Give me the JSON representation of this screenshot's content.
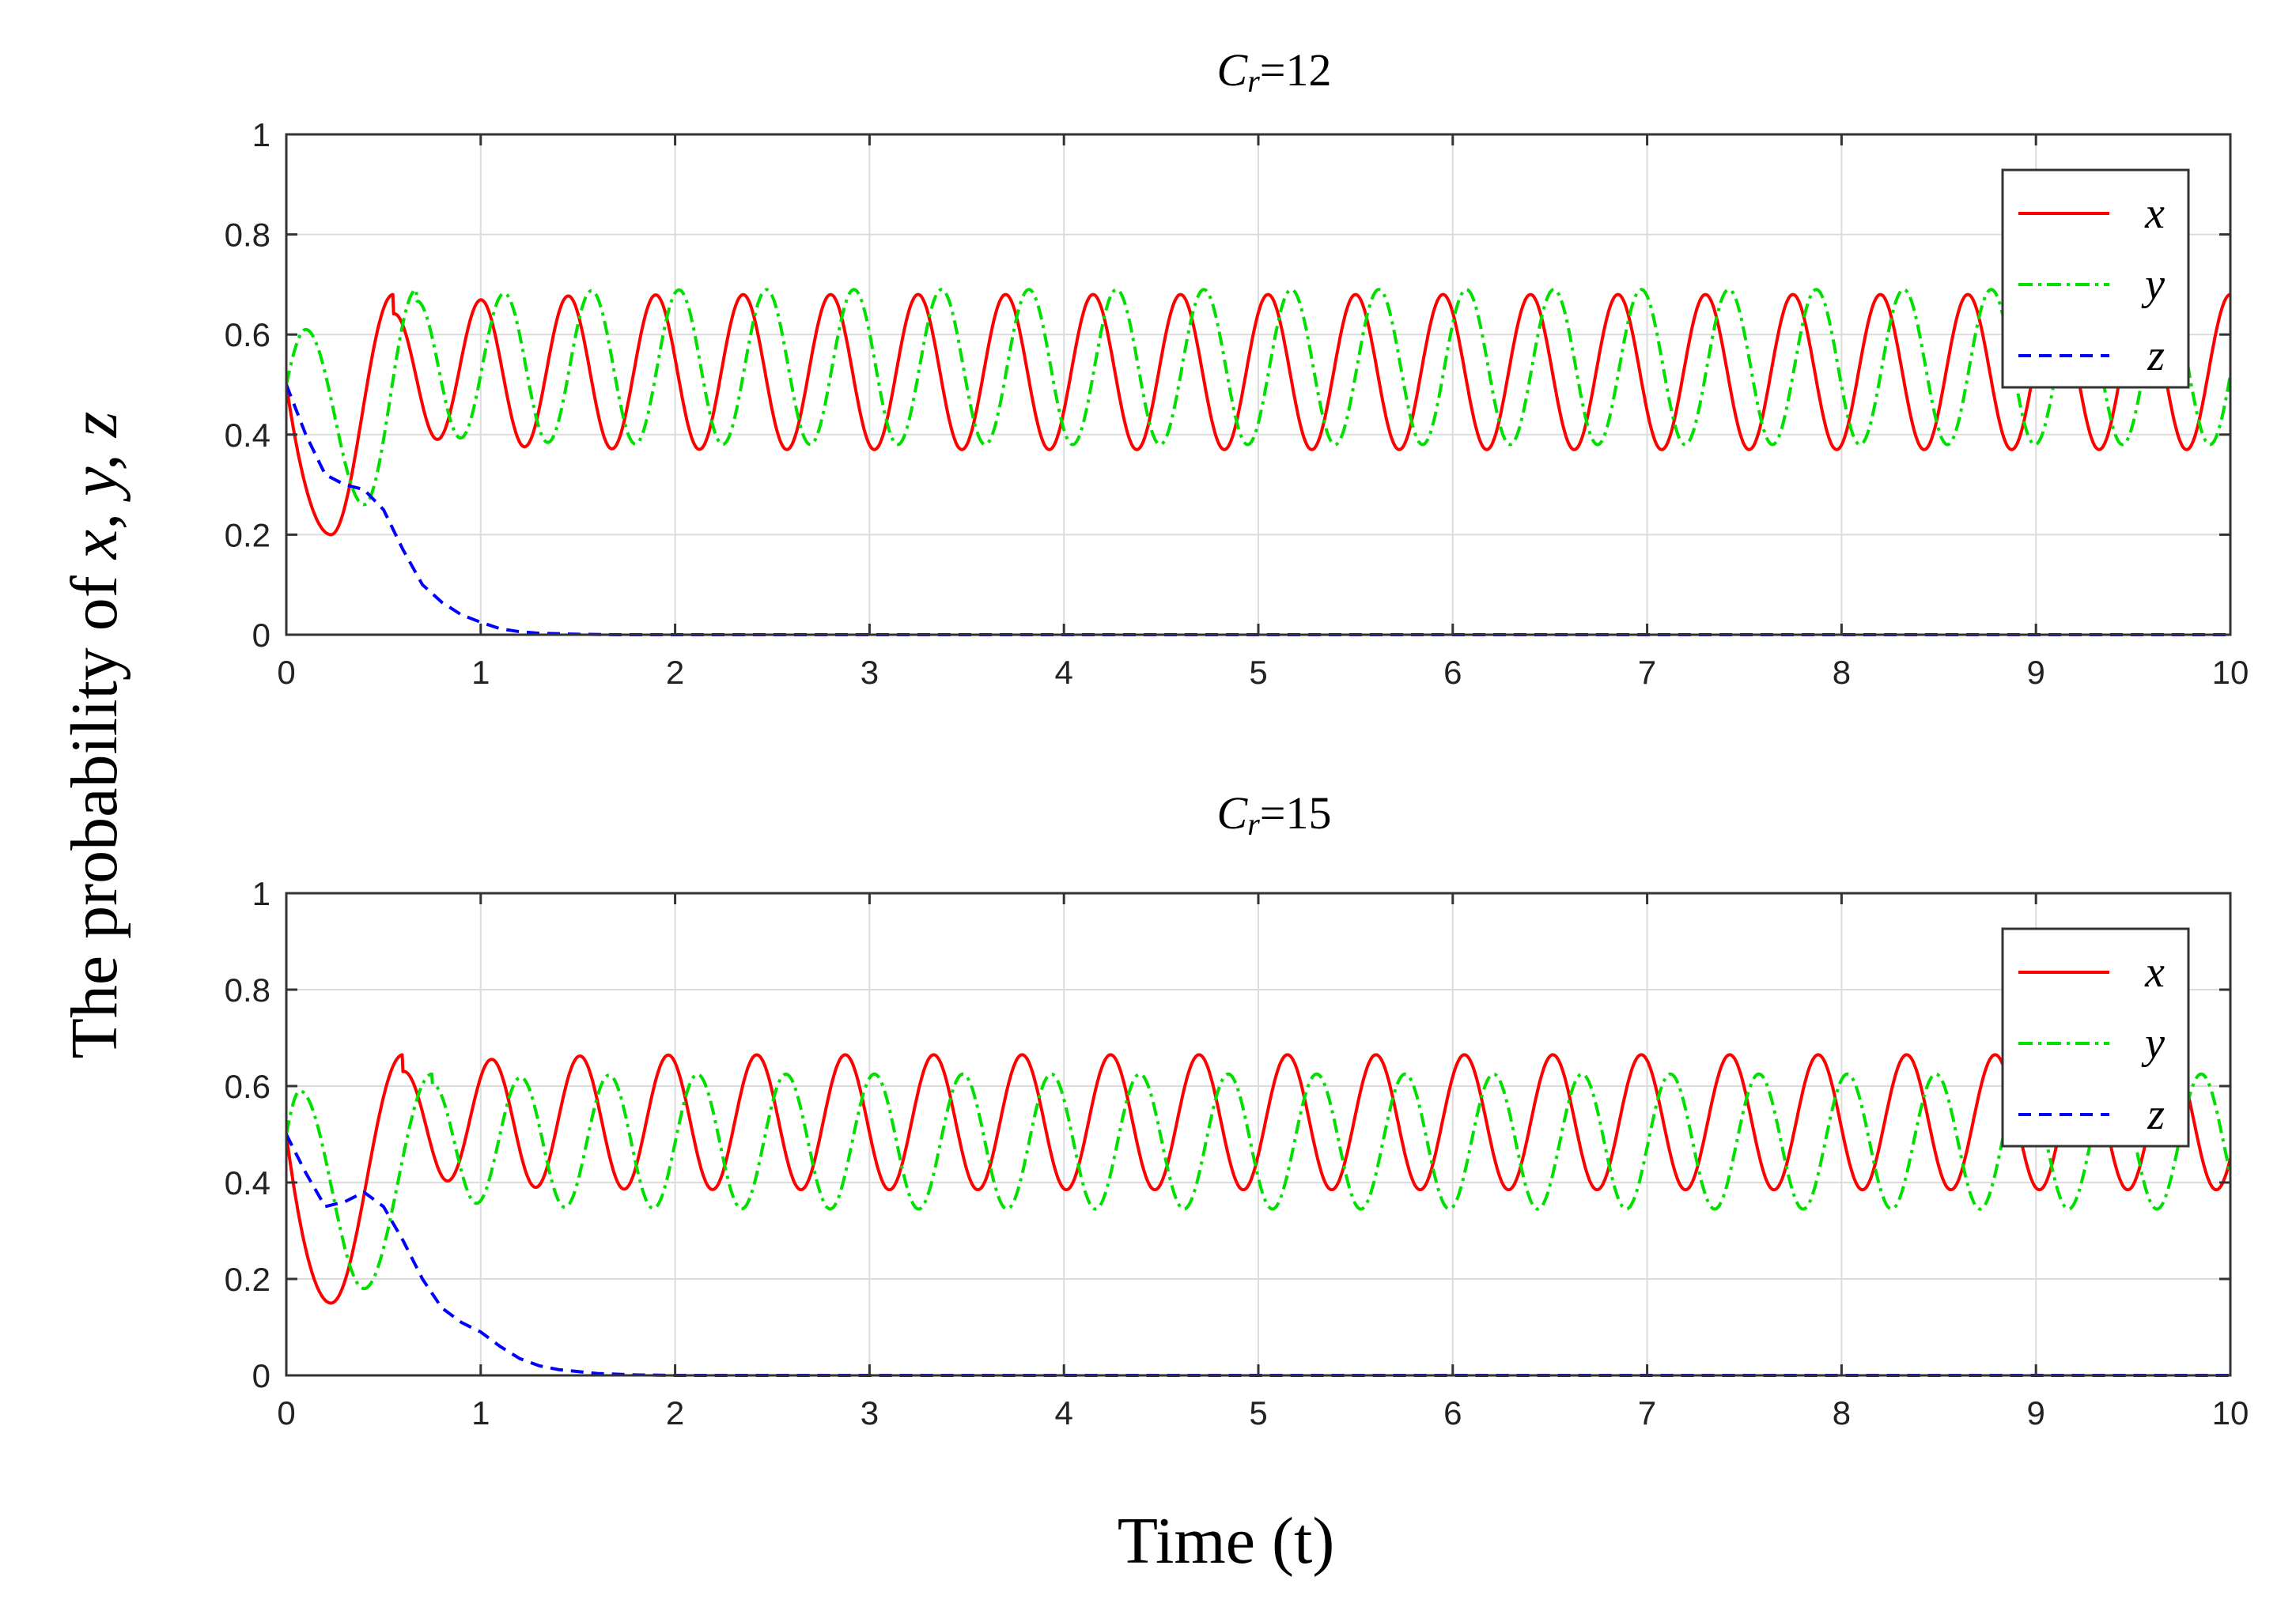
{
  "y_axis_label": {
    "prefix": "The probability of ",
    "vars": "x, y, z"
  },
  "x_axis_label": "Time (t)",
  "colors": {
    "x": "#ff0000",
    "y": "#00e000",
    "z": "#0000ff",
    "grid": "#dcdcdc"
  },
  "chart_data": [
    {
      "type": "line",
      "title": {
        "symbol": "C",
        "subscript": "r",
        "equals": "=12"
      },
      "xlim": [
        0,
        10
      ],
      "ylim": [
        0,
        1
      ],
      "xticks": [
        0,
        1,
        2,
        3,
        4,
        5,
        6,
        7,
        8,
        9,
        10
      ],
      "yticks": [
        0,
        0.2,
        0.4,
        0.6,
        0.8,
        1
      ],
      "ytick_labels": [
        "0",
        "0.2",
        "0.4",
        "0.6",
        "0.8",
        "1"
      ],
      "grid": true,
      "legend": {
        "position": "top-right",
        "entries": [
          "x",
          "y",
          "z"
        ]
      },
      "series": [
        {
          "name": "x",
          "style": "solid",
          "y0": 0.5,
          "min": 0.2,
          "t_min": 0.23,
          "mean": 0.525,
          "amp": 0.155,
          "period": 0.45,
          "t_first_peak": 0.55
        },
        {
          "name": "y",
          "style": "dash-dot",
          "y0": 0.5,
          "first_peak": 0.61,
          "t_first_peak": 0.1,
          "min": 0.26,
          "t_min": 0.4,
          "mean": 0.535,
          "amp": 0.155,
          "period": 0.45,
          "t_second_peak": 0.67
        },
        {
          "name": "z",
          "style": "dashed",
          "points": [
            [
              0,
              0.5
            ],
            [
              0.1,
              0.4
            ],
            [
              0.2,
              0.32
            ],
            [
              0.3,
              0.3
            ],
            [
              0.4,
              0.29
            ],
            [
              0.5,
              0.25
            ],
            [
              0.6,
              0.17
            ],
            [
              0.7,
              0.1
            ],
            [
              0.8,
              0.065
            ],
            [
              0.9,
              0.04
            ],
            [
              1.0,
              0.025
            ],
            [
              1.1,
              0.012
            ],
            [
              1.2,
              0.006
            ],
            [
              1.3,
              0.003
            ],
            [
              1.5,
              0.001
            ],
            [
              1.7,
              0
            ],
            [
              10,
              0
            ]
          ]
        }
      ]
    },
    {
      "type": "line",
      "title": {
        "symbol": "C",
        "subscript": "r",
        "equals": "=15"
      },
      "xlim": [
        0,
        10
      ],
      "ylim": [
        0,
        1
      ],
      "xticks": [
        0,
        1,
        2,
        3,
        4,
        5,
        6,
        7,
        8,
        9,
        10
      ],
      "yticks": [
        0,
        0.2,
        0.4,
        0.6,
        0.8,
        1
      ],
      "ytick_labels": [
        "0",
        "0.2",
        "0.4",
        "0.6",
        "0.8",
        "1"
      ],
      "grid": true,
      "legend": {
        "position": "top-right",
        "entries": [
          "x",
          "y",
          "z"
        ]
      },
      "series": [
        {
          "name": "x",
          "style": "solid",
          "y0": 0.5,
          "min": 0.15,
          "t_min": 0.23,
          "mean": 0.525,
          "amp": 0.14,
          "period": 0.455,
          "t_first_peak": 0.6
        },
        {
          "name": "y",
          "style": "dash-dot",
          "y0": 0.5,
          "first_peak": 0.59,
          "t_first_peak": 0.07,
          "min": 0.18,
          "t_min": 0.4,
          "mean": 0.485,
          "amp": 0.14,
          "period": 0.455,
          "t_second_peak": 0.75
        },
        {
          "name": "z",
          "style": "dashed",
          "points": [
            [
              0,
              0.5
            ],
            [
              0.1,
              0.42
            ],
            [
              0.2,
              0.35
            ],
            [
              0.3,
              0.36
            ],
            [
              0.4,
              0.38
            ],
            [
              0.5,
              0.35
            ],
            [
              0.6,
              0.28
            ],
            [
              0.7,
              0.2
            ],
            [
              0.8,
              0.14
            ],
            [
              0.9,
              0.11
            ],
            [
              1.0,
              0.09
            ],
            [
              1.1,
              0.06
            ],
            [
              1.2,
              0.035
            ],
            [
              1.3,
              0.02
            ],
            [
              1.4,
              0.012
            ],
            [
              1.6,
              0.004
            ],
            [
              1.8,
              0.001
            ],
            [
              2.0,
              0
            ],
            [
              10,
              0
            ]
          ]
        }
      ]
    }
  ]
}
